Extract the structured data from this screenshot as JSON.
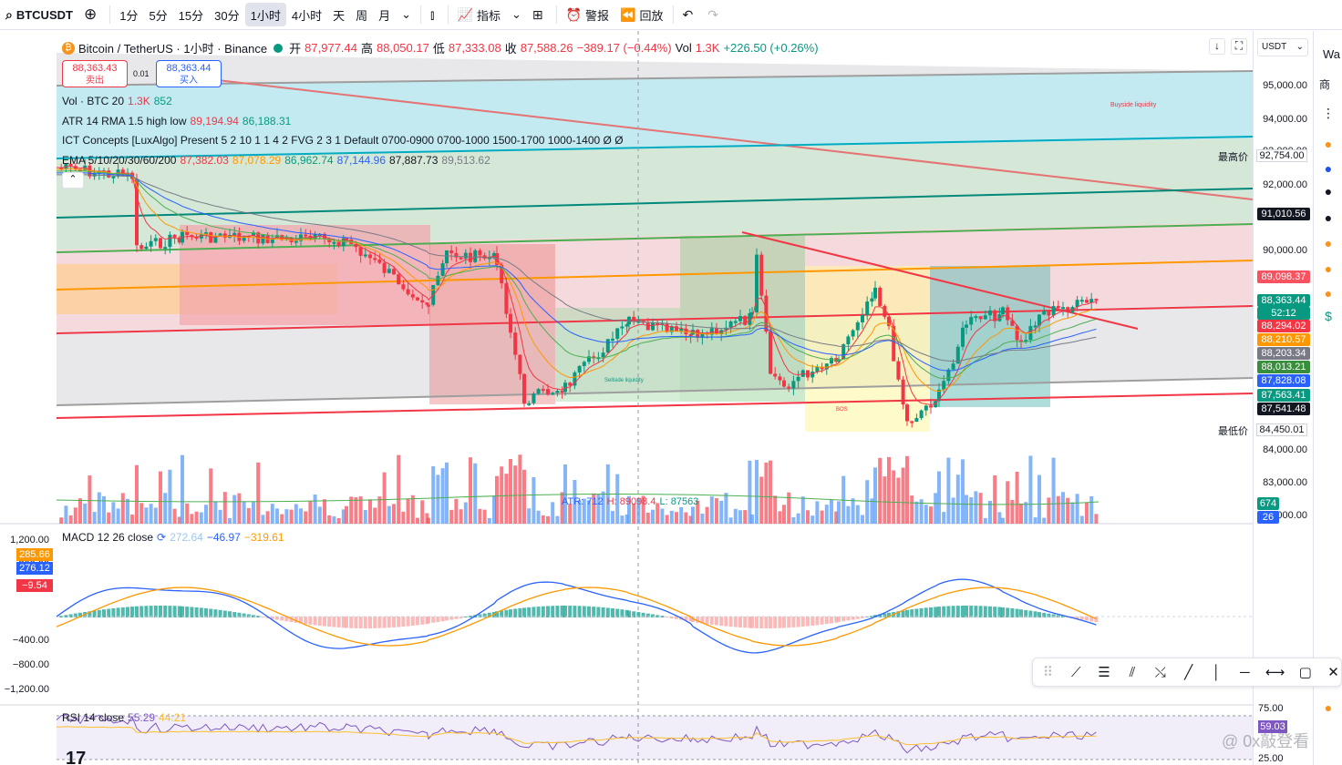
{
  "toolbar": {
    "symbol": "BTCUSDT",
    "intervals": [
      "1分",
      "5分",
      "15分",
      "30分",
      "1小时",
      "4小时",
      "天",
      "周",
      "月"
    ],
    "active_interval": "1小时",
    "indicators_label": "指标",
    "alert_label": "警报",
    "replay_label": "回放"
  },
  "header": {
    "title": "Bitcoin / TetherUS · 1小时 · Binance",
    "open_label": "开",
    "open": "87,977.44",
    "high_label": "高",
    "high": "88,050.17",
    "low_label": "低",
    "low": "87,333.08",
    "close_label": "收",
    "close": "87,588.26",
    "change": "−389.17 (−0.44%)",
    "vol_label": "Vol",
    "vol": "1.3K",
    "vol_change": "+226.50 (+0.26%)"
  },
  "trade": {
    "sell_price": "88,363.43",
    "sell_label": "卖出",
    "spread": "0.01",
    "buy_price": "88,363.44",
    "buy_label": "买入"
  },
  "indicators": {
    "vol": {
      "label": "Vol · BTC 20",
      "v1": "1.3K",
      "v2": "852"
    },
    "atr": {
      "label": "ATR 14 RMA 1.5 high low",
      "v1": "89,194.94",
      "v2": "86,188.31"
    },
    "ict": {
      "label": "ICT Concepts [LuxAlgo] Present 5 2 10 1 1 4 2 FVG 2 3 1 Default 0700-0900 0700-1000 1500-1700 1000-1400 Ø Ø"
    },
    "ema": {
      "label": "EMA 5/10/20/30/60/200",
      "values": [
        "87,382.03",
        "87,078.29",
        "86,962.74",
        "87,144.96",
        "87,887.73",
        "89,513.62"
      ]
    },
    "macd": {
      "label": "MACD 12 26 close",
      "values": [
        "272.64",
        "−46.97",
        "−319.61"
      ]
    },
    "rsi": {
      "label": "RSI 14 close",
      "values": [
        "55.29",
        "44.21"
      ]
    }
  },
  "chart_labels": {
    "buyside": "Buyside liquidity",
    "sellside": "Sellside liquidity",
    "bos": "BOS",
    "atr_line": "ATR: 712",
    "h_line": "H: 89098.4",
    "l_line": "L: 87563"
  },
  "axis": {
    "currency": "USDT",
    "ticks": [
      "95,000.00",
      "94,000.00",
      "93,000.00",
      "92,000.00",
      "90,000.00",
      "84,000.00",
      "83,000.00",
      "82,000.00"
    ],
    "high_label": "最高价",
    "high_value": "92,754.00",
    "low_label": "最低价",
    "low_value": "84,450.01",
    "labels": [
      {
        "v": "91,010.56",
        "c": "#131722"
      },
      {
        "v": "89,098.37",
        "c": "#f7525f"
      },
      {
        "v": "88,363.44",
        "c": "#089981"
      },
      {
        "v": "52:12",
        "c": "#089981"
      },
      {
        "v": "88,294.02",
        "c": "#f23645"
      },
      {
        "v": "88,210.57",
        "c": "#ff9800"
      },
      {
        "v": "88,203.34",
        "c": "#787b86"
      },
      {
        "v": "88,013.21",
        "c": "#388e3c"
      },
      {
        "v": "87,828.08",
        "c": "#2962ff"
      },
      {
        "v": "87,563.41",
        "c": "#089981"
      },
      {
        "v": "87,541.48",
        "c": "#131722"
      }
    ],
    "vol_labels": [
      {
        "v": "674",
        "c": "#089981"
      },
      {
        "v": "26",
        "c": "#2962ff"
      }
    ],
    "macd_ticks": [
      "1,200.00",
      "800.00",
      "−400.00",
      "−800.00",
      "−1,200.00"
    ],
    "macd_labels": [
      {
        "v": "285.66",
        "c": "#ff9800"
      },
      {
        "v": "276.12",
        "c": "#2962ff"
      },
      {
        "v": "−9.54",
        "c": "#f23645"
      }
    ],
    "rsi_ticks": [
      "75.00",
      "25.00"
    ],
    "rsi_label": "59.03"
  },
  "right_panel": {
    "top_text": "Wa",
    "sub_text": "商"
  },
  "watermark": "@ 0x敲登看",
  "tv_logo": "17"
}
